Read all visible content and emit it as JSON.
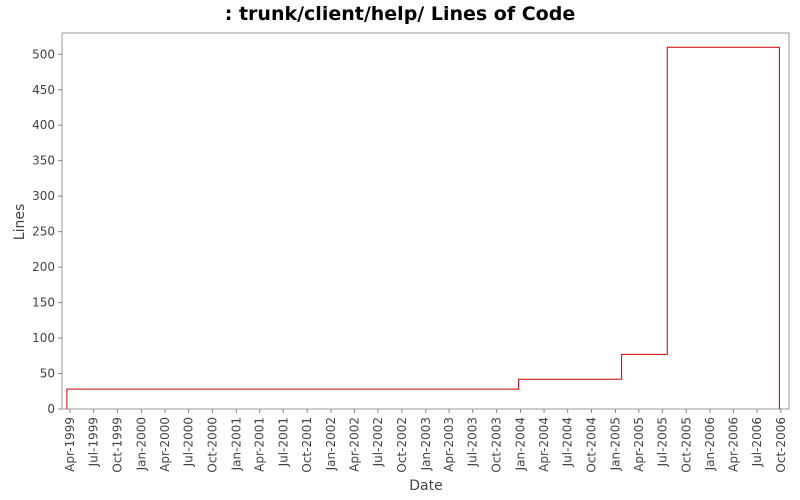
{
  "chart_data": {
    "type": "line",
    "step": true,
    "title": ": trunk/client/help/ Lines of Code",
    "xlabel": "Date",
    "ylabel": "Lines",
    "x_tick_labels": [
      "Apr-1999",
      "Jul-1999",
      "Oct-1999",
      "Jan-2000",
      "Apr-2000",
      "Jul-2000",
      "Oct-2000",
      "Jan-2001",
      "Apr-2001",
      "Jul-2001",
      "Oct-2001",
      "Jan-2002",
      "Apr-2002",
      "Jul-2002",
      "Oct-2002",
      "Jan-2003",
      "Apr-2003",
      "Jul-2003",
      "Oct-2003",
      "Jan-2004",
      "Apr-2004",
      "Jul-2004",
      "Oct-2004",
      "Jan-2005",
      "Apr-2005",
      "Jul-2005",
      "Oct-2005",
      "Jan-2006",
      "Apr-2006",
      "Jul-2006",
      "Oct-2006"
    ],
    "xlim": [
      "1999-03-01",
      "2006-11-01"
    ],
    "y_ticks": [
      0,
      50,
      100,
      150,
      200,
      250,
      300,
      350,
      400,
      450,
      500
    ],
    "ylim": [
      0,
      530
    ],
    "grid": false,
    "line_color": "#cc0000",
    "series": [
      {
        "points": [
          {
            "date": "1999-03-20",
            "value": 0
          },
          {
            "date": "1999-03-20",
            "value": 28
          },
          {
            "date": "2003-12-25",
            "value": 28
          },
          {
            "date": "2003-12-25",
            "value": 42
          },
          {
            "date": "2005-01-25",
            "value": 42
          },
          {
            "date": "2005-01-25",
            "value": 77
          },
          {
            "date": "2005-07-20",
            "value": 77
          },
          {
            "date": "2005-07-20",
            "value": 510
          },
          {
            "date": "2006-09-25",
            "value": 510
          },
          {
            "date": "2006-09-25",
            "value": 0
          }
        ]
      }
    ]
  }
}
